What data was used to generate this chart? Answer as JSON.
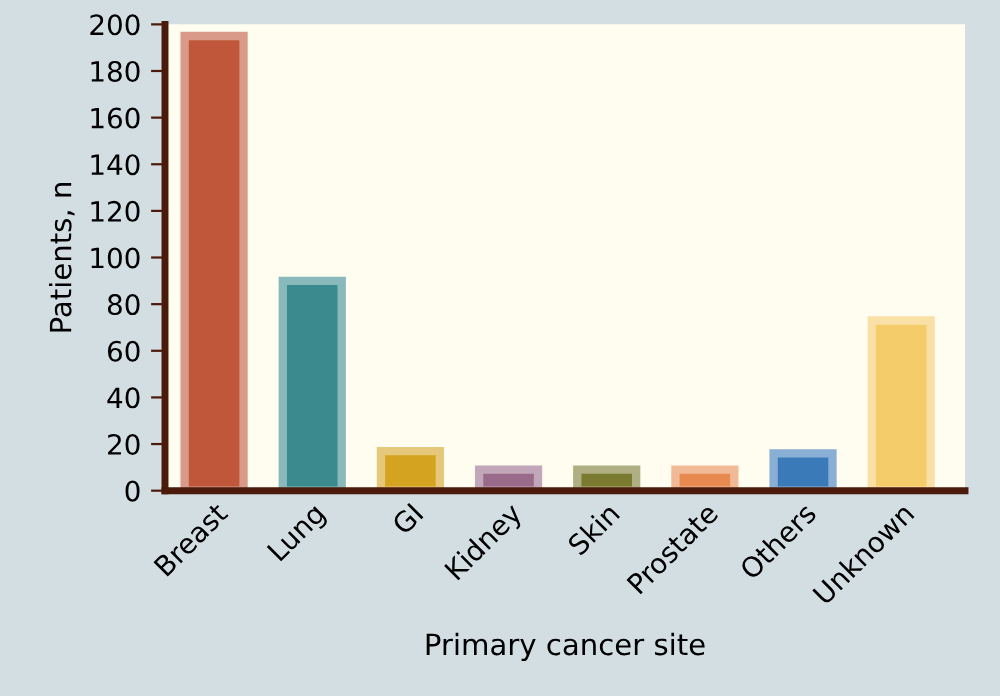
{
  "chart_data": {
    "type": "bar",
    "xlabel": "Primary cancer site",
    "ylabel": "Patients, n",
    "categories": [
      "Breast",
      "Lung",
      "GI",
      "Kidney",
      "Skin",
      "Prostate",
      "Others",
      "Unknown"
    ],
    "values": [
      195,
      90,
      17,
      9,
      9,
      9,
      16,
      73
    ],
    "colors": [
      "#c0573a",
      "#3a8a8e",
      "#d4a320",
      "#9a6a8a",
      "#7a7a30",
      "#e88a50",
      "#3a7ab8",
      "#f5cc6a"
    ],
    "ylim": [
      0,
      200
    ],
    "yticks": [
      0,
      20,
      40,
      60,
      80,
      100,
      120,
      140,
      160,
      180,
      200
    ],
    "grid": false
  }
}
